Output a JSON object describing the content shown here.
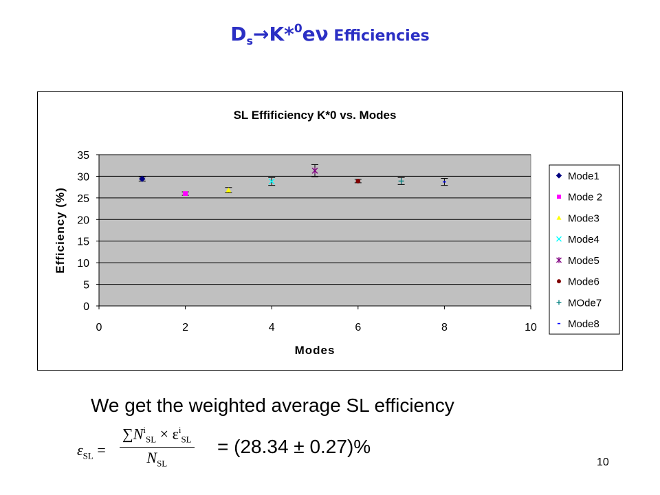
{
  "slide": {
    "title_main": "D",
    "title_sub": "s",
    "title_arrow": "→",
    "title_k": "K*",
    "title_sup": "0",
    "title_e": "e",
    "title_nu": "ν",
    "title_rest": " Efficiencies",
    "title_color": "#2b2fc4",
    "summary": "We get the weighted average SL efficiency",
    "result": "= (28.34 ± 0.27)%",
    "page_number": "10",
    "formula": {
      "lhs": "ε",
      "lhs_sub": "SL",
      "equals": "=",
      "num_sigma": "∑",
      "num_n": "N",
      "num_n_sup": "i",
      "num_n_sub": "SL",
      "num_times": " × ε",
      "num_e_sup": "i",
      "num_e_sub": "SL",
      "den_n": "N",
      "den_sub": "SL"
    }
  },
  "chart_data": {
    "type": "scatter",
    "title": "SL Effificiency K*0 vs. Modes",
    "xlabel": "Modes",
    "ylabel": "Efficiency (%)",
    "xlim": [
      0,
      10
    ],
    "ylim": [
      0,
      35
    ],
    "xticks": [
      0,
      2,
      4,
      6,
      8,
      10
    ],
    "yticks": [
      0,
      5,
      10,
      15,
      20,
      25,
      30,
      35
    ],
    "grid": "horizontal",
    "plot_bg": "#c0c0c0",
    "legend_position": "right",
    "series": [
      {
        "name": "Mode1",
        "x": 1,
        "y": 29.4,
        "err": 0.5,
        "marker": "diamond",
        "color": "#000080"
      },
      {
        "name": "Mode 2",
        "x": 2,
        "y": 26.0,
        "err": 0.4,
        "marker": "square",
        "color": "#ff00ff"
      },
      {
        "name": "Mode3",
        "x": 3,
        "y": 26.8,
        "err": 0.6,
        "marker": "triangle",
        "color": "#ffff00"
      },
      {
        "name": "Mode4",
        "x": 4,
        "y": 28.8,
        "err": 0.9,
        "marker": "x",
        "color": "#00ffff"
      },
      {
        "name": "Mode5",
        "x": 5,
        "y": 31.3,
        "err": 1.4,
        "marker": "star",
        "color": "#800080"
      },
      {
        "name": "Mode6",
        "x": 6,
        "y": 28.9,
        "err": 0.4,
        "marker": "circle",
        "color": "#800000"
      },
      {
        "name": "MOde7",
        "x": 7,
        "y": 28.9,
        "err": 0.8,
        "marker": "plus",
        "color": "#008080"
      },
      {
        "name": "Mode8",
        "x": 8,
        "y": 28.7,
        "err": 0.8,
        "marker": "dash",
        "color": "#0000ff"
      }
    ]
  }
}
